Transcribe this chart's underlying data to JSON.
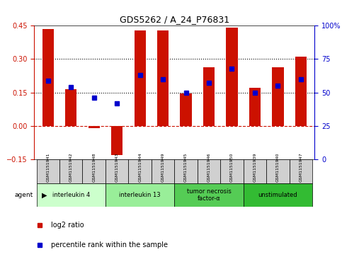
{
  "title": "GDS5262 / A_24_P76831",
  "samples": [
    "GSM1151941",
    "GSM1151942",
    "GSM1151948",
    "GSM1151943",
    "GSM1151944",
    "GSM1151949",
    "GSM1151945",
    "GSM1151946",
    "GSM1151950",
    "GSM1151939",
    "GSM1151940",
    "GSM1151947"
  ],
  "log2_ratio": [
    0.435,
    0.165,
    -0.01,
    -0.13,
    0.43,
    0.43,
    0.145,
    0.265,
    0.44,
    0.17,
    0.265,
    0.31
  ],
  "percentile_rank": [
    0.59,
    0.54,
    0.46,
    0.42,
    0.63,
    0.6,
    0.5,
    0.57,
    0.68,
    0.5,
    0.55,
    0.6
  ],
  "agents": [
    {
      "label": "interleukin 4",
      "start": 0,
      "end": 2,
      "color": "#ccffcc"
    },
    {
      "label": "interleukin 13",
      "start": 3,
      "end": 5,
      "color": "#99ee99"
    },
    {
      "label": "tumor necrosis\nfactor-α",
      "start": 6,
      "end": 8,
      "color": "#55cc55"
    },
    {
      "label": "unstimulated",
      "start": 9,
      "end": 11,
      "color": "#33bb33"
    }
  ],
  "ylim_left": [
    -0.15,
    0.45
  ],
  "ylim_right": [
    0,
    100
  ],
  "bar_color": "#cc1100",
  "dot_color": "#0000cc",
  "hline_y": [
    0.15,
    0.3
  ],
  "yticks_left": [
    -0.15,
    0,
    0.15,
    0.3,
    0.45
  ],
  "yticks_right": [
    0,
    25,
    50,
    75,
    100
  ],
  "bar_width": 0.5
}
